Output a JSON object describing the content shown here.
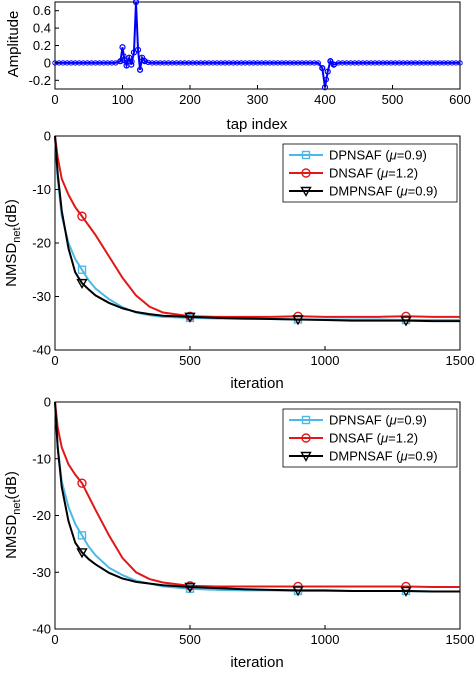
{
  "chart_data": [
    {
      "type": "line",
      "xlabel": "tap index",
      "ylabel": "Amplitude",
      "xlim": [
        0,
        600
      ],
      "ylim": [
        -0.3,
        0.7
      ],
      "xticks": [
        0,
        100,
        200,
        300,
        400,
        500,
        600
      ],
      "yticks": [
        -0.2,
        0,
        0.2,
        0.4,
        0.6
      ],
      "ytick_labels": [
        "-0.2",
        "0",
        "0.2",
        "0.4",
        "0.6"
      ],
      "grid": false,
      "series": [
        {
          "color": "#0000ff",
          "marker": "circle",
          "points": [
            [
              0,
              0
            ],
            [
              90,
              0
            ],
            [
              97,
              0.02
            ],
            [
              100,
              0.18
            ],
            [
              103,
              0.03
            ],
            [
              106,
              -0.03
            ],
            [
              110,
              0.06
            ],
            [
              113,
              -0.02
            ],
            [
              117,
              0.12
            ],
            [
              120,
              0.7
            ],
            [
              123,
              0.15
            ],
            [
              126,
              -0.08
            ],
            [
              129,
              0.06
            ],
            [
              133,
              0.02
            ],
            [
              140,
              0
            ],
            [
              200,
              0
            ],
            [
              390,
              0
            ],
            [
              396,
              -0.06
            ],
            [
              400,
              -0.28
            ],
            [
              404,
              -0.1
            ],
            [
              408,
              0.02
            ],
            [
              413,
              -0.02
            ],
            [
              420,
              0
            ],
            [
              600,
              0
            ]
          ]
        }
      ]
    },
    {
      "type": "line",
      "xlabel": "iteration",
      "ylabel": "NMSD",
      "ylabel_sub": "net",
      "ylabel_unit": "(dB)",
      "xlim": [
        0,
        1500
      ],
      "ylim": [
        -40,
        0
      ],
      "xticks": [
        0,
        500,
        1000,
        1500
      ],
      "yticks": [
        0,
        -10,
        -20,
        -30,
        -40
      ],
      "legend_position": "top-right",
      "grid": false,
      "series": [
        {
          "name_prefix": "DPNSAF (",
          "mu": "μ",
          "name_suffix": "=0.9)",
          "color": "#4db8e8",
          "marker": "square",
          "x": [
            0,
            10,
            25,
            50,
            75,
            100,
            125,
            150,
            200,
            250,
            300,
            350,
            400,
            500,
            600,
            700,
            800,
            900,
            1000,
            1100,
            1200,
            1300,
            1400,
            1500
          ],
          "y": [
            0,
            -8,
            -15,
            -20,
            -23,
            -25,
            -27,
            -28.5,
            -30.5,
            -32,
            -33,
            -33.5,
            -33.8,
            -34,
            -34.1,
            -34.2,
            -34.2,
            -34.3,
            -34.3,
            -34.3,
            -34.3,
            -34.4,
            -34.4,
            -34.4
          ],
          "marker_x": [
            100,
            500,
            900,
            1300
          ]
        },
        {
          "name_prefix": "DNSAF (",
          "mu": "μ",
          "name_suffix": "=1.2)",
          "color": "#e01818",
          "marker": "circle",
          "x": [
            0,
            10,
            25,
            50,
            75,
            100,
            150,
            200,
            250,
            300,
            350,
            400,
            500,
            600,
            700,
            800,
            900,
            1000,
            1100,
            1200,
            1300,
            1400,
            1500
          ],
          "y": [
            0,
            -4,
            -8,
            -11,
            -13.3,
            -15,
            -18.5,
            -22.5,
            -26.5,
            -29.8,
            -31.9,
            -33,
            -33.7,
            -33.8,
            -33.8,
            -33.8,
            -33.7,
            -33.8,
            -33.8,
            -33.8,
            -33.7,
            -33.8,
            -33.8
          ],
          "marker_x": [
            100,
            500,
            900,
            1300
          ]
        },
        {
          "name_prefix": "DMPNSAF (",
          "mu": "μ",
          "name_suffix": "=0.9)",
          "color": "#000000",
          "marker": "triangle-down",
          "x": [
            0,
            10,
            25,
            50,
            75,
            100,
            125,
            150,
            200,
            250,
            300,
            350,
            400,
            500,
            600,
            700,
            800,
            900,
            1000,
            1100,
            1200,
            1300,
            1400,
            1500
          ],
          "y": [
            0,
            -7,
            -14,
            -21,
            -25.5,
            -27.5,
            -28.7,
            -29.8,
            -31.2,
            -32.2,
            -32.9,
            -33.3,
            -33.6,
            -33.8,
            -34,
            -34.1,
            -34.2,
            -34.3,
            -34.4,
            -34.5,
            -34.5,
            -34.5,
            -34.6,
            -34.6
          ],
          "marker_x": [
            100,
            500,
            900,
            1300
          ]
        }
      ]
    },
    {
      "type": "line",
      "xlabel": "iteration",
      "ylabel": "NMSD",
      "ylabel_sub": "net",
      "ylabel_unit": "(dB)",
      "xlim": [
        0,
        1500
      ],
      "ylim": [
        -40,
        0
      ],
      "xticks": [
        0,
        500,
        1000,
        1500
      ],
      "yticks": [
        0,
        -10,
        -20,
        -30,
        -40
      ],
      "legend_position": "top-right",
      "grid": false,
      "series": [
        {
          "name_prefix": "DPNSAF (",
          "mu": "μ",
          "name_suffix": "=0.9)",
          "color": "#4db8e8",
          "marker": "square",
          "x": [
            0,
            10,
            25,
            50,
            75,
            100,
            125,
            150,
            200,
            250,
            300,
            400,
            500,
            600,
            700,
            800,
            900,
            1000,
            1100,
            1200,
            1300,
            1400,
            1500
          ],
          "y": [
            0,
            -8,
            -14,
            -18.5,
            -21.5,
            -23.5,
            -25.5,
            -27,
            -29.2,
            -30.5,
            -31.5,
            -32.5,
            -32.9,
            -33.1,
            -33.2,
            -33.2,
            -33.3,
            -33.3,
            -33.3,
            -33.3,
            -33.3,
            -33.4,
            -33.4
          ],
          "marker_x": [
            100,
            500,
            900,
            1300
          ]
        },
        {
          "name_prefix": "DNSAF (",
          "mu": "μ",
          "name_suffix": "=1.2)",
          "color": "#e01818",
          "marker": "circle",
          "x": [
            0,
            10,
            25,
            50,
            75,
            100,
            150,
            200,
            250,
            300,
            350,
            400,
            500,
            600,
            700,
            800,
            900,
            1000,
            1100,
            1200,
            1300,
            1400,
            1500
          ],
          "y": [
            0,
            -4.5,
            -8,
            -11,
            -12.8,
            -14.3,
            -19,
            -23.5,
            -27.5,
            -30,
            -31.2,
            -31.8,
            -32.4,
            -32.5,
            -32.5,
            -32.5,
            -32.5,
            -32.5,
            -32.5,
            -32.5,
            -32.5,
            -32.6,
            -32.6
          ],
          "marker_x": [
            100,
            500,
            900,
            1300
          ]
        },
        {
          "name_prefix": "DMPNSAF (",
          "mu": "μ",
          "name_suffix": "=0.9)",
          "color": "#000000",
          "marker": "triangle-down",
          "x": [
            0,
            10,
            25,
            50,
            75,
            100,
            125,
            150,
            200,
            250,
            300,
            400,
            500,
            600,
            700,
            800,
            900,
            1000,
            1100,
            1200,
            1300,
            1400,
            1500
          ],
          "y": [
            0,
            -8,
            -15,
            -21,
            -24.8,
            -26.5,
            -27.7,
            -28.6,
            -30.1,
            -31.1,
            -31.7,
            -32.3,
            -32.6,
            -32.8,
            -33,
            -33.1,
            -33.2,
            -33.2,
            -33.3,
            -33.3,
            -33.3,
            -33.4,
            -33.4
          ],
          "marker_x": [
            100,
            500,
            900,
            1300
          ]
        }
      ]
    }
  ]
}
